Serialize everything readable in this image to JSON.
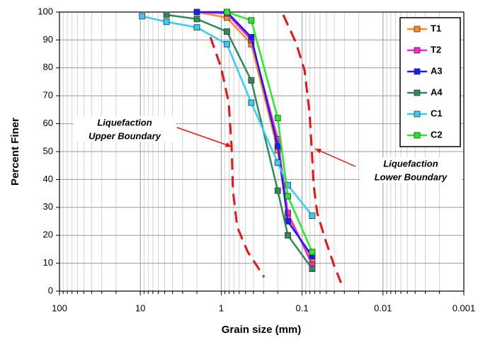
{
  "chart_data": {
    "type": "line",
    "x_label": "Grain size  (mm)",
    "y_label": "Percent Finer",
    "xlim": [
      100,
      0.001
    ],
    "xticks": [
      100,
      10,
      1,
      0.1,
      0.01,
      0.001
    ],
    "xlog": true,
    "ylim": [
      0,
      100
    ],
    "yticks": [
      0,
      10,
      20,
      30,
      40,
      50,
      60,
      70,
      80,
      90,
      100
    ],
    "grid": true,
    "legend": "upper right",
    "series": [
      {
        "name": "T1",
        "color": "#ff8c1a",
        "x": [
          2.0,
          0.85,
          0.425,
          0.2,
          0.15,
          0.075
        ],
        "values": [
          100,
          98,
          88.5,
          50.5,
          27,
          10.5
        ]
      },
      {
        "name": "T2",
        "color": "#ff22cc",
        "x": [
          2.0,
          0.85,
          0.425,
          0.2,
          0.15,
          0.075
        ],
        "values": [
          100,
          99.5,
          90,
          54.5,
          28,
          9.5
        ]
      },
      {
        "name": "A3",
        "color": "#1a1aff",
        "x": [
          2.0,
          0.85,
          0.425,
          0.2,
          0.15,
          0.075
        ],
        "values": [
          100,
          100,
          91,
          52,
          25,
          12.5
        ]
      },
      {
        "name": "A4",
        "color": "#2e8b57",
        "x": [
          4.75,
          2.0,
          0.85,
          0.425,
          0.2,
          0.15,
          0.075
        ],
        "values": [
          99,
          97.5,
          93,
          75.5,
          36,
          20,
          8
        ]
      },
      {
        "name": "C1",
        "color": "#33ccff",
        "x": [
          9.5,
          4.75,
          2.0,
          0.85,
          0.425,
          0.2,
          0.15,
          0.075
        ],
        "values": [
          98.5,
          96.5,
          94.5,
          88.5,
          67.5,
          46,
          38,
          27
        ]
      },
      {
        "name": "C2",
        "color": "#22ee22",
        "x": [
          0.85,
          0.425,
          0.2,
          0.15,
          0.075
        ],
        "values": [
          100,
          97,
          62,
          34,
          14
        ]
      }
    ],
    "boundaries": [
      {
        "label": [
          "Liquefaction",
          "Upper Boundary"
        ],
        "color": "#ee1111",
        "x": [
          1.36,
          1.0,
          0.808,
          0.745,
          0.716,
          0.634,
          0.469,
          0.361,
          0.295
        ],
        "values": [
          91,
          80,
          67.5,
          52,
          36,
          23,
          14,
          9,
          5
        ]
      },
      {
        "label": [
          "Liquefaction",
          "Lower Boundary"
        ],
        "color": "#ee1111",
        "x": [
          0.171,
          0.119,
          0.093,
          0.081,
          0.076,
          0.072,
          0.065,
          0.051,
          0.04,
          0.033
        ],
        "values": [
          99,
          89,
          79,
          64,
          51,
          38,
          28,
          18,
          9,
          3
        ]
      }
    ]
  }
}
